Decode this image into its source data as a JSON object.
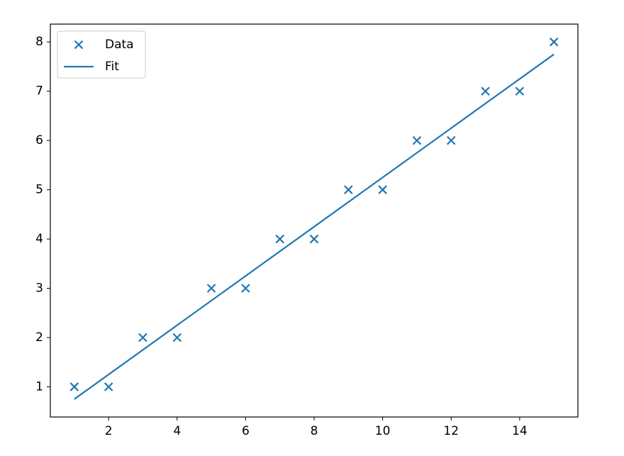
{
  "chart_data": {
    "type": "scatter",
    "series": [
      {
        "name": "Data",
        "type": "scatter",
        "marker": "x",
        "color": "#1f77b4",
        "x": [
          1,
          2,
          3,
          4,
          5,
          6,
          7,
          8,
          9,
          10,
          11,
          12,
          13,
          14,
          15
        ],
        "values": [
          1,
          1,
          2,
          2,
          3,
          3,
          4,
          4,
          5,
          5,
          6,
          6,
          7,
          7,
          8
        ]
      },
      {
        "name": "Fit",
        "type": "line",
        "color": "#1f77b4",
        "x": [
          1,
          15
        ],
        "values": [
          0.75,
          7.75
        ]
      }
    ],
    "xlim": [
      0.3,
      15.7
    ],
    "xticks": [
      2,
      4,
      6,
      8,
      10,
      12,
      14
    ],
    "ylim": [
      0.3875,
      8.3625
    ],
    "yticks": [
      1,
      2,
      3,
      4,
      5,
      6,
      7,
      8
    ],
    "grid": false,
    "legend": "upper left"
  }
}
